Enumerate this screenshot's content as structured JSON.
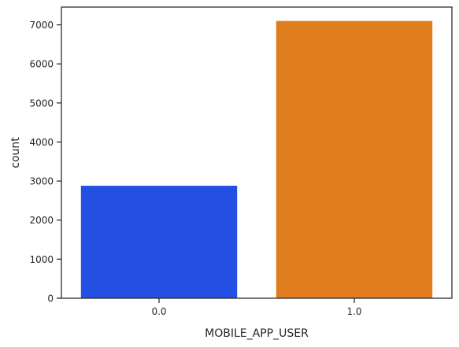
{
  "chart_data": {
    "type": "bar",
    "categories": [
      "0.0",
      "1.0"
    ],
    "values": [
      2880,
      7100
    ],
    "colors": [
      "#2350e2",
      "#e07e1f"
    ],
    "title": "",
    "xlabel": "MOBILE_APP_USER",
    "ylabel": "count",
    "ylim": [
      0,
      7455
    ],
    "yticks": [
      0,
      1000,
      2000,
      3000,
      4000,
      5000,
      6000,
      7000
    ],
    "grid": false
  }
}
